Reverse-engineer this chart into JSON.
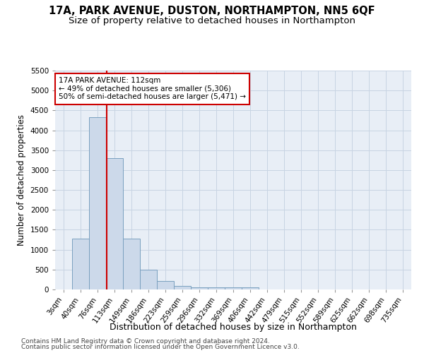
{
  "title1": "17A, PARK AVENUE, DUSTON, NORTHAMPTON, NN5 6QF",
  "title2": "Size of property relative to detached houses in Northampton",
  "xlabel": "Distribution of detached houses by size in Northampton",
  "ylabel": "Number of detached properties",
  "categories": [
    "3sqm",
    "40sqm",
    "76sqm",
    "113sqm",
    "149sqm",
    "186sqm",
    "223sqm",
    "259sqm",
    "296sqm",
    "332sqm",
    "369sqm",
    "406sqm",
    "442sqm",
    "479sqm",
    "515sqm",
    "552sqm",
    "589sqm",
    "625sqm",
    "662sqm",
    "698sqm",
    "735sqm"
  ],
  "values": [
    0,
    1270,
    4330,
    3300,
    1270,
    490,
    220,
    90,
    60,
    60,
    50,
    50,
    0,
    0,
    0,
    0,
    0,
    0,
    0,
    0,
    0
  ],
  "bar_color": "#ccd9ea",
  "bar_edge_color": "#7aa0bf",
  "bar_edge_width": 0.7,
  "grid_color": "#c8d4e3",
  "background_color": "#e8eef6",
  "vline_x_index": 2.55,
  "vline_color": "#cc0000",
  "annotation_line1": "17A PARK AVENUE: 112sqm",
  "annotation_line2": "← 49% of detached houses are smaller (5,306)",
  "annotation_line3": "50% of semi-detached houses are larger (5,471) →",
  "annotation_box_color": "#ffffff",
  "annotation_box_edge": "#cc0000",
  "ylim": [
    0,
    5500
  ],
  "yticks": [
    0,
    500,
    1000,
    1500,
    2000,
    2500,
    3000,
    3500,
    4000,
    4500,
    5000,
    5500
  ],
  "footer1": "Contains HM Land Registry data © Crown copyright and database right 2024.",
  "footer2": "Contains public sector information licensed under the Open Government Licence v3.0.",
  "title1_fontsize": 10.5,
  "title2_fontsize": 9.5,
  "xlabel_fontsize": 9,
  "ylabel_fontsize": 8.5,
  "tick_fontsize": 7.5,
  "annotation_fontsize": 7.5,
  "footer_fontsize": 6.5
}
